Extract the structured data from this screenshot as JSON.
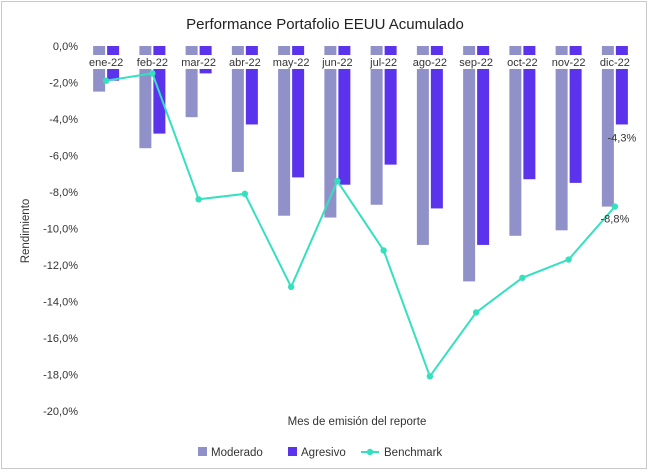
{
  "chart_data": {
    "type": "bar",
    "title": "Performance Portafolio EEUU Acumulado",
    "xlabel": "Mes de emisión del reporte",
    "ylabel": "Rendimiento",
    "categories": [
      "ene-22",
      "feb-22",
      "mar-22",
      "abr-22",
      "may-22",
      "jun-22",
      "jul-22",
      "ago-22",
      "sep-22",
      "oct-22",
      "nov-22",
      "dic-22"
    ],
    "series": [
      {
        "name": "Moderado",
        "kind": "bar",
        "color": "#9191c9",
        "values": [
          -2.5,
          -5.6,
          -3.9,
          -6.9,
          -9.3,
          -9.4,
          -8.7,
          -10.9,
          -12.9,
          -10.4,
          -10.1,
          -8.8
        ]
      },
      {
        "name": "Agresivo",
        "kind": "bar",
        "color": "#5b33ec",
        "values": [
          -1.9,
          -4.8,
          -1.5,
          -4.3,
          -7.2,
          -7.6,
          -6.5,
          -8.9,
          -10.9,
          -7.3,
          -7.5,
          -4.3
        ]
      },
      {
        "name": "Benchmark",
        "kind": "line",
        "color": "#35e0bf",
        "values": [
          -1.9,
          -1.5,
          -8.4,
          -8.1,
          -13.2,
          -7.4,
          -11.2,
          -18.1,
          -14.6,
          -12.7,
          -11.7,
          -8.8
        ]
      }
    ],
    "ylim": [
      -20,
      0
    ],
    "yticks": [
      0,
      -2,
      -4,
      -6,
      -8,
      -10,
      -12,
      -14,
      -16,
      -18,
      -20
    ],
    "ytick_labels": [
      "0,0%",
      "-2,0%",
      "-4,0%",
      "-6,0%",
      "-8,0%",
      "-10,0%",
      "-12,0%",
      "-14,0%",
      "-16,0%",
      "-18,0%",
      "-20,0%"
    ],
    "data_labels": [
      {
        "text": "-4,3%",
        "series": "Agresivo",
        "index": 11
      },
      {
        "text": "-8,8%",
        "series": "Benchmark",
        "index": 11
      }
    ],
    "grid": false,
    "legend_position": "bottom"
  }
}
